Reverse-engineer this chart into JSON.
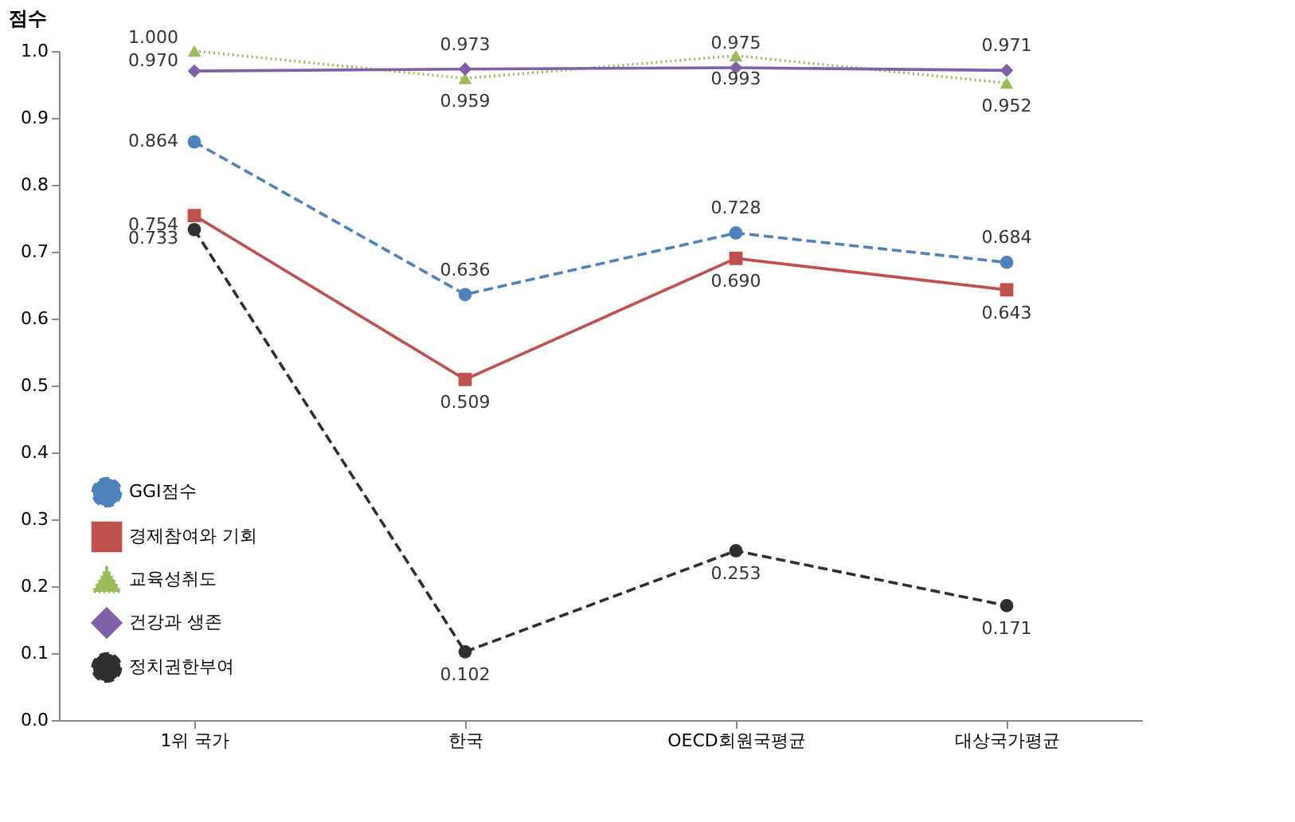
{
  "chart_data": {
    "type": "line",
    "ylabel": "점수",
    "categories": [
      "1위 국가",
      "한국",
      "OECD회원국평균",
      "대상국가평균"
    ],
    "series": [
      {
        "name": "GGI점수",
        "color": "#4f81bd",
        "marker": "circle",
        "line_style": "dashed",
        "values": [
          0.864,
          0.636,
          0.728,
          0.684
        ]
      },
      {
        "name": "경제참여와 기회",
        "color": "#c0504d",
        "marker": "square",
        "line_style": "solid",
        "values": [
          0.754,
          0.509,
          0.69,
          0.643
        ],
        "value_labels": [
          "0.754",
          "0.509",
          "0.690",
          "0.643"
        ]
      },
      {
        "name": "교육성취도",
        "color": "#9bbb59",
        "marker": "triangle",
        "line_style": "dotted",
        "values": [
          1.0,
          0.959,
          0.993,
          0.952
        ],
        "value_labels": [
          "1.000",
          "0.959",
          "0.993",
          "0.952"
        ]
      },
      {
        "name": "건강과 생존",
        "color": "#7f5fa8",
        "marker": "diamond",
        "line_style": "solid",
        "values": [
          0.97,
          0.973,
          0.975,
          0.971
        ],
        "value_labels": [
          "0.970",
          "0.973",
          "0.975",
          "0.971"
        ]
      },
      {
        "name": "정치권한부여",
        "color": "#2f2f2f",
        "marker": "circle",
        "line_style": "dashed",
        "values": [
          0.733,
          0.102,
          0.253,
          0.171
        ]
      }
    ],
    "ylim": [
      0,
      1.0
    ],
    "yticks": [
      {
        "value": 0,
        "label": "0.0"
      },
      0.1,
      0.2,
      0.3,
      0.4,
      0.5,
      0.6,
      0.7,
      0.8,
      0.9,
      {
        "value": 1.0,
        "label": "1.0"
      }
    ],
    "data_labels": true,
    "grid": false,
    "legend": "bottom left"
  }
}
